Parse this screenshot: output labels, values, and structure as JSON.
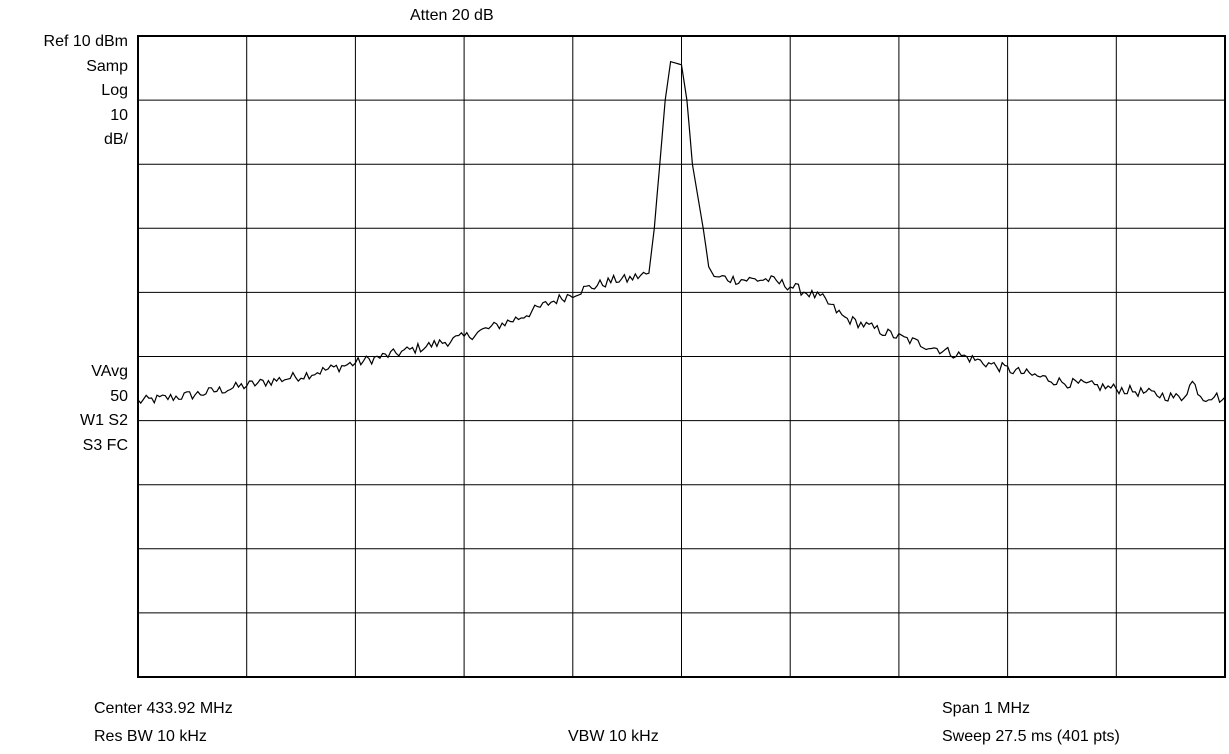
{
  "header": {
    "atten": "Atten 20 dB"
  },
  "left_panel": {
    "ref": "Ref 10 dBm",
    "detector": "Samp",
    "scale_type": "Log",
    "scale_value": "10",
    "scale_unit": "dB/",
    "avg_mode": "VAvg",
    "avg_count": "50",
    "flags_1": "W1 S2",
    "flags_2": "S3 FC"
  },
  "footer": {
    "center": "Center 433.92 MHz",
    "rbw": "Res BW 10 kHz",
    "vbw": "VBW 10 kHz",
    "span": "Span 1 MHz",
    "sweep": "Sweep 27.5 ms (401 pts)"
  },
  "chart_data": {
    "type": "line",
    "x_unit": "MHz",
    "y_unit": "dBm",
    "center_mhz": 433.92,
    "span_mhz": 1,
    "xlim": [
      433.42,
      434.42
    ],
    "ylim": [
      -90,
      10
    ],
    "grid": true,
    "x_divisions": 10,
    "y_divisions": 10,
    "series": [
      {
        "x": [
          433.42,
          433.47,
          433.52,
          433.57,
          433.62,
          433.67,
          433.72,
          433.77,
          433.8,
          433.83,
          433.85,
          433.86,
          433.87,
          433.88,
          433.89,
          433.895,
          433.9,
          433.905,
          433.91,
          433.92,
          433.925,
          433.93,
          433.94,
          433.945,
          433.95,
          433.97,
          434.0,
          434.02,
          434.05,
          434.07,
          434.12,
          434.17,
          434.22,
          434.27,
          434.32,
          434.36,
          434.38,
          434.39,
          434.4,
          434.41,
          434.42
        ],
        "y": [
          -47,
          -46,
          -44.5,
          -43,
          -41,
          -39,
          -37,
          -34,
          -31.5,
          -29.5,
          -28.5,
          -28,
          -28,
          -27.5,
          -27,
          -20,
          -10,
          0,
          6,
          5.5,
          0,
          -10,
          -20,
          -26,
          -27.5,
          -28,
          -28,
          -29,
          -31,
          -34,
          -37,
          -39.5,
          -42,
          -44,
          -45,
          -46,
          -46.5,
          -44,
          -46.5,
          -46,
          -47
        ]
      }
    ]
  }
}
